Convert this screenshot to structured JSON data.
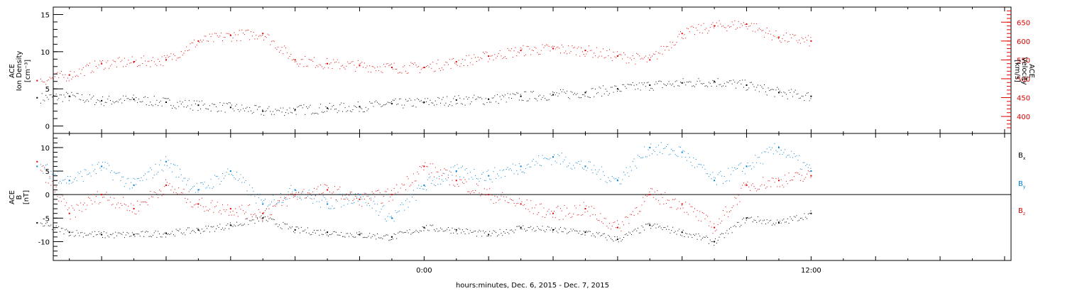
{
  "chart_data": [
    {
      "type": "scatter",
      "panel": "top",
      "ylabel_left": [
        "ACE",
        "Ion Density",
        "[cm⁻³]"
      ],
      "ylabel_right": [
        "ACE",
        "Velocity",
        "[km/s]"
      ],
      "ylim_left": [
        -1,
        16
      ],
      "yticks_left": [
        "0",
        "5",
        "10",
        "15"
      ],
      "ylim_right": [
        355,
        690
      ],
      "yticks_right": [
        "400",
        "450",
        "500",
        "550",
        "600",
        "650"
      ],
      "colors": {
        "density": "#000000",
        "velocity": "#dd0000"
      },
      "series": [
        {
          "color": "#000000",
          "axis": "left",
          "x": [
            -12,
            -11,
            -10,
            -9,
            -8,
            -7,
            -6,
            -5,
            -4,
            -3,
            -2,
            -1,
            0,
            1,
            2,
            3,
            4,
            5,
            6,
            7,
            8,
            9,
            10,
            11,
            12
          ],
          "y": [
            3.8,
            4.0,
            3.4,
            3.6,
            3.2,
            2.8,
            2.5,
            2.0,
            2.2,
            2.4,
            2.6,
            3.0,
            3.2,
            3.5,
            3.6,
            4.0,
            4.2,
            4.5,
            5.0,
            5.5,
            5.8,
            6.0,
            5.5,
            4.5,
            4.0
          ]
        },
        {
          "color": "#dd0000",
          "axis": "right",
          "x": [
            -12,
            -11,
            -10,
            -9,
            -8,
            -7,
            -6,
            -5,
            -4,
            -3,
            -2,
            -1,
            0,
            1,
            2,
            3,
            4,
            5,
            6,
            7,
            8,
            9,
            10,
            11,
            12
          ],
          "y": [
            495,
            510,
            540,
            545,
            550,
            600,
            615,
            620,
            550,
            540,
            535,
            530,
            530,
            545,
            560,
            575,
            580,
            575,
            560,
            550,
            620,
            640,
            645,
            610,
            600
          ]
        }
      ]
    },
    {
      "type": "scatter",
      "panel": "bottom",
      "ylabel": [
        "ACE",
        "B",
        "[nT]"
      ],
      "ylim": [
        -14,
        13
      ],
      "yticks": [
        "-10",
        "-5",
        "0",
        "5",
        "10"
      ],
      "zero_line": true,
      "legend": [
        "B",
        "B",
        "B"
      ],
      "legend_sub": [
        "x",
        "y",
        "z"
      ],
      "colors": {
        "bx": "#000000",
        "by": "#0080d0",
        "bz": "#dd0000"
      },
      "series": [
        {
          "color": "#000000",
          "x": [
            -12,
            -11,
            -10,
            -9,
            -8,
            -7,
            -6,
            -5,
            -4,
            -3,
            -2,
            -1,
            0,
            1,
            2,
            3,
            4,
            5,
            6,
            7,
            8,
            9,
            10,
            11,
            12
          ],
          "y": [
            -6,
            -8,
            -8.5,
            -8.5,
            -8.2,
            -7.5,
            -6.5,
            -5,
            -7.5,
            -8.0,
            -8.5,
            -9.0,
            -7.0,
            -7.5,
            -8.5,
            -7.0,
            -7.5,
            -8.0,
            -9.5,
            -6.5,
            -8.0,
            -10.0,
            -5.0,
            -6.0,
            -4.0
          ]
        },
        {
          "color": "#0080d0",
          "x": [
            -12,
            -11,
            -10,
            -9,
            -8,
            -7,
            -6,
            -5,
            -4,
            -3,
            -2,
            -1,
            0,
            1,
            2,
            3,
            4,
            5,
            6,
            7,
            8,
            9,
            10,
            11,
            12
          ],
          "y": [
            6,
            3,
            6,
            2,
            7,
            1,
            5,
            -2,
            1,
            -2,
            0,
            -5,
            2,
            5,
            4,
            6,
            8,
            6,
            3,
            10,
            9,
            3,
            6,
            10,
            5
          ]
        },
        {
          "color": "#dd0000",
          "x": [
            -12,
            -11,
            -10,
            -9,
            -8,
            -7,
            -6,
            -5,
            -4,
            -3,
            -2,
            -1,
            0,
            1,
            2,
            3,
            4,
            5,
            6,
            7,
            8,
            9,
            10,
            11,
            12
          ],
          "y": [
            7,
            -4,
            0,
            -3,
            2,
            -2,
            -3,
            -4,
            0,
            1,
            -1,
            0,
            6,
            3,
            0,
            -2,
            -4,
            -3,
            -7,
            0,
            -2,
            -7,
            2,
            3,
            4
          ]
        }
      ]
    }
  ],
  "x_axis": {
    "label": "hours:minutes, Dec.  6, 2015 - Dec.  7, 2015",
    "range_hours": [
      -11.5,
      18.2
    ],
    "tick_labels": [
      "0:00",
      "12:00"
    ]
  }
}
